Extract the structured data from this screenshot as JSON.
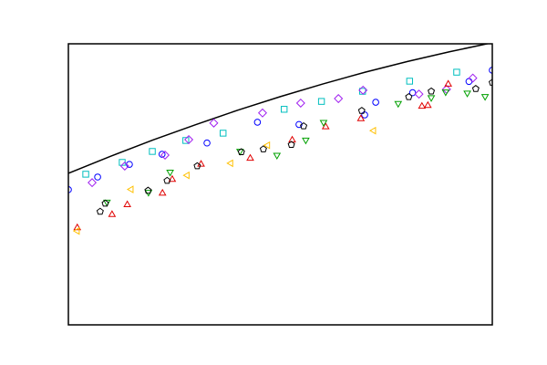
{
  "chart_data": {
    "type": "scatter",
    "title": "",
    "xlabel": "",
    "ylabel": "",
    "xlim": [
      0,
      1
    ],
    "ylim": [
      0,
      1
    ],
    "grid": false,
    "legend": "none",
    "colors": {
      "axes": "#000000",
      "curve": "#000000",
      "blue": "#0000ff",
      "cyan": "#00bfbf",
      "purple": "#a020f0",
      "red": "#e00000",
      "green": "#00a000",
      "black": "#000000",
      "yellow": "#ffc000"
    },
    "curve": {
      "name": "upper-bound",
      "x": [
        0,
        0.1,
        0.2,
        0.3,
        0.4,
        0.5,
        0.6,
        0.7,
        0.8,
        0.9,
        1.0
      ],
      "y": [
        0.539,
        0.6,
        0.658,
        0.712,
        0.764,
        0.812,
        0.857,
        0.899,
        0.937,
        0.972,
        1.004
      ]
    },
    "series": [
      {
        "name": "blue-circle",
        "marker": "circle",
        "color": "#0000ff",
        "x": [
          0.0,
          0.069,
          0.144,
          0.221,
          0.327,
          0.446,
          0.544,
          0.699,
          0.725,
          0.812,
          0.945,
          1.0
        ],
        "y": [
          0.481,
          0.526,
          0.571,
          0.607,
          0.647,
          0.721,
          0.713,
          0.747,
          0.792,
          0.826,
          0.866,
          0.906
        ]
      },
      {
        "name": "cyan-square",
        "marker": "square",
        "color": "#00bfbf",
        "x": [
          0.041,
          0.127,
          0.198,
          0.277,
          0.365,
          0.509,
          0.597,
          0.694,
          0.805,
          0.916
        ],
        "y": [
          0.536,
          0.578,
          0.617,
          0.656,
          0.682,
          0.767,
          0.795,
          0.831,
          0.867,
          0.899
        ]
      },
      {
        "name": "purple-diamond",
        "marker": "diamond",
        "color": "#a020f0",
        "x": [
          0.056,
          0.133,
          0.228,
          0.284,
          0.343,
          0.458,
          0.548,
          0.637,
          0.695,
          0.827,
          0.892,
          0.954
        ],
        "y": [
          0.506,
          0.565,
          0.604,
          0.659,
          0.718,
          0.754,
          0.789,
          0.805,
          0.835,
          0.821,
          0.838,
          0.878
        ]
      },
      {
        "name": "red-triangle-up",
        "marker": "triangle-up",
        "color": "#e00000",
        "x": [
          0.021,
          0.103,
          0.139,
          0.222,
          0.245,
          0.313,
          0.429,
          0.528,
          0.607,
          0.69,
          0.848,
          0.834,
          0.896
        ],
        "y": [
          0.347,
          0.394,
          0.429,
          0.47,
          0.519,
          0.573,
          0.594,
          0.659,
          0.706,
          0.735,
          0.782,
          0.779,
          0.858
        ]
      },
      {
        "name": "green-triangle-down",
        "marker": "triangle-down",
        "color": "#00a000",
        "x": [
          0.091,
          0.189,
          0.24,
          0.405,
          0.492,
          0.56,
          0.602,
          0.778,
          0.856,
          0.89,
          0.941,
          0.983
        ],
        "y": [
          0.435,
          0.47,
          0.542,
          0.616,
          0.602,
          0.656,
          0.719,
          0.786,
          0.807,
          0.827,
          0.823,
          0.811
        ]
      },
      {
        "name": "black-pentagon",
        "marker": "pentagon",
        "color": "#000000",
        "x": [
          0.075,
          0.087,
          0.188,
          0.233,
          0.304,
          0.408,
          0.46,
          0.526,
          0.555,
          0.692,
          0.803,
          0.856,
          0.961,
          1.0
        ],
        "y": [
          0.403,
          0.432,
          0.478,
          0.513,
          0.565,
          0.615,
          0.625,
          0.641,
          0.707,
          0.762,
          0.811,
          0.831,
          0.84,
          0.862
        ]
      },
      {
        "name": "yellow-triangle-left",
        "marker": "triangle-left",
        "color": "#ffc000",
        "x": [
          0.02,
          0.147,
          0.279,
          0.382,
          0.469,
          0.719
        ],
        "y": [
          0.334,
          0.482,
          0.532,
          0.575,
          0.639,
          0.691
        ]
      }
    ]
  }
}
